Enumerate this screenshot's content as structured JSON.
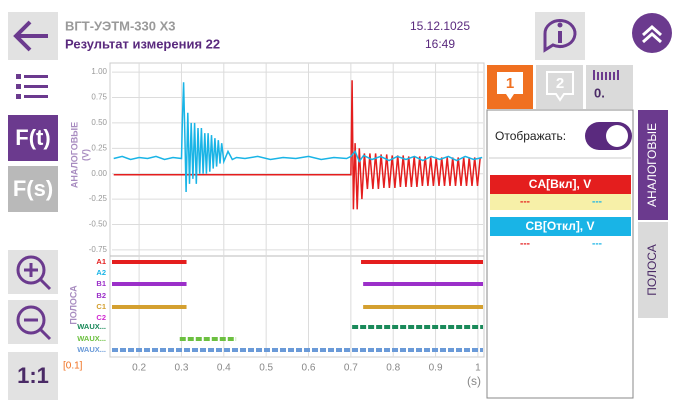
{
  "header": {
    "device": "ВГТ-УЭТМ-330 Х3",
    "title": "Результат измерения 22",
    "date": "15.12.1025",
    "time": "16:49"
  },
  "sidebar": {
    "fn_time": "F(t)",
    "fn_freq": "F(s)",
    "reset_zoom": "1:1"
  },
  "chart_data": {
    "type": "line",
    "ylabel": "АНАЛОГОВЫЕ",
    "yunit": "(V)",
    "xlabel": "(s)",
    "scale_label": "[0.1]",
    "band_label": "ПОЛОСА",
    "xlim": [
      0.136,
      1.012
    ],
    "xticks": [
      0.2,
      0.3,
      0.4,
      0.5,
      0.6,
      0.7,
      0.8,
      0.9,
      1
    ],
    "ylim": [
      -0.8,
      1.07
    ],
    "yticks": [
      {
        "value": 1,
        "label": "1.00"
      },
      0.75,
      {
        "value": 0.5,
        "label": "0.50"
      },
      0.25,
      {
        "value": 0,
        "label": "0.00"
      },
      -0.25,
      {
        "value": -0.5,
        "label": "-0.50"
      },
      -0.75
    ],
    "grid": true,
    "series": [
      {
        "name": "CA[Вкл], V",
        "color": "#e41e1e",
        "x": [
          0.14,
          0.7,
          0.703,
          0.706,
          0.71,
          0.715,
          0.72,
          0.726,
          0.732,
          0.739,
          0.745,
          0.752,
          0.7585,
          0.765,
          0.7715,
          0.778,
          0.7845,
          0.791,
          0.7975,
          0.804,
          0.8105,
          0.817,
          0.8235,
          0.83,
          0.8365,
          0.843,
          0.8495,
          0.856,
          0.8625,
          0.869,
          0.8755,
          0.882,
          0.8885,
          0.895,
          0.9015,
          0.908,
          0.9145,
          0.921,
          0.9275,
          0.934,
          0.9405,
          0.947,
          0.9535,
          0.96,
          0.9665,
          0.973,
          0.9795,
          0.986,
          0.9925,
          0.999,
          1.0055
        ],
        "values": [
          -0.01,
          -0.01,
          0.92,
          -0.35,
          0.3,
          -0.35,
          0.25,
          -0.25,
          0.2,
          -0.15,
          0.2,
          -0.15,
          0.2,
          -0.15,
          0.19,
          -0.14,
          0.19,
          -0.14,
          0.18,
          -0.14,
          0.18,
          -0.13,
          0.18,
          -0.13,
          0.17,
          -0.13,
          0.17,
          -0.13,
          0.17,
          -0.12,
          0.17,
          -0.12,
          0.16,
          -0.12,
          0.16,
          -0.12,
          0.16,
          -0.12,
          0.16,
          -0.12,
          0.16,
          -0.12,
          0.16,
          -0.12,
          0.16,
          -0.12,
          0.16,
          -0.12,
          0.16,
          -0.12,
          0.16
        ]
      },
      {
        "name": "CB[Откл], V",
        "color": "#19b4e6",
        "x": [
          0.14,
          0.16,
          0.18,
          0.2,
          0.22,
          0.24,
          0.26,
          0.28,
          0.3,
          0.302,
          0.305,
          0.308,
          0.311,
          0.315,
          0.319,
          0.323,
          0.327,
          0.331,
          0.335,
          0.339,
          0.343,
          0.347,
          0.351,
          0.355,
          0.359,
          0.363,
          0.367,
          0.371,
          0.375,
          0.379,
          0.383,
          0.387,
          0.391,
          0.395,
          0.4,
          0.41,
          0.42,
          0.43,
          0.45,
          0.48,
          0.51,
          0.54,
          0.57,
          0.6,
          0.63,
          0.66,
          0.69,
          0.7,
          0.71,
          0.72,
          0.73,
          0.75,
          0.77,
          0.79,
          0.81,
          0.83,
          0.85,
          0.87,
          0.89,
          0.91,
          0.93,
          0.95,
          0.97,
          0.99,
          1.01
        ],
        "values": [
          0.15,
          0.17,
          0.14,
          0.16,
          0.15,
          0.17,
          0.14,
          0.16,
          0.15,
          0.5,
          0.9,
          0.4,
          -0.18,
          0.6,
          -0.1,
          0.5,
          -0.05,
          0.5,
          -0.1,
          0.45,
          0,
          0.45,
          0,
          0.4,
          0,
          0.4,
          0.02,
          0.38,
          0.05,
          0.35,
          0.07,
          0.33,
          0.1,
          0.3,
          0.12,
          0.22,
          0.14,
          0.16,
          0.15,
          0.17,
          0.14,
          0.16,
          0.15,
          0.17,
          0.14,
          0.16,
          0.15,
          0.17,
          0.22,
          0.12,
          0.18,
          0.14,
          0.17,
          0.13,
          0.17,
          0.14,
          0.17,
          0.13,
          0.17,
          0.14,
          0.17,
          0.13,
          0.17,
          0.14,
          0.16
        ]
      }
    ],
    "channels": [
      {
        "name": "A1",
        "color": "#e41e1e",
        "dashed": false,
        "intervals": [
          [
            0.136,
            0.312
          ],
          [
            0.724,
            1.012
          ]
        ]
      },
      {
        "name": "A2",
        "color": "#19b4e6",
        "dashed": false,
        "intervals": []
      },
      {
        "name": "B1",
        "color": "#9b2fc9",
        "dashed": false,
        "intervals": [
          [
            0.136,
            0.312
          ],
          [
            0.729,
            1.012
          ]
        ]
      },
      {
        "name": "B2",
        "color": "#9b2fc9",
        "dashed": false,
        "intervals": []
      },
      {
        "name": "C1",
        "color": "#d4a030",
        "dashed": false,
        "intervals": [
          [
            0.136,
            0.312
          ],
          [
            0.729,
            1.012
          ]
        ]
      },
      {
        "name": "C2",
        "color": "#d02ad0",
        "dashed": false,
        "intervals": []
      },
      {
        "name": "WAUX...",
        "color": "#1a8a5a",
        "dashed": true,
        "intervals": [
          [
            0.703,
            1.012
          ]
        ]
      },
      {
        "name": "WAUX...",
        "color": "#6cc040",
        "dashed": true,
        "intervals": [
          [
            0.296,
            0.429
          ]
        ]
      },
      {
        "name": "WAUX...",
        "color": "#6a9ad8",
        "dashed": true,
        "intervals": [
          [
            0.136,
            1.012
          ]
        ]
      }
    ]
  },
  "panel": {
    "tabs": [
      "1",
      "2",
      "0."
    ],
    "display_label": "Отображать:",
    "side_tabs": [
      "АНАЛОГОВЫЕ",
      "ПОЛОСА"
    ],
    "cursor_values": [
      [
        "---",
        "---"
      ],
      [
        "---",
        "---"
      ]
    ]
  }
}
